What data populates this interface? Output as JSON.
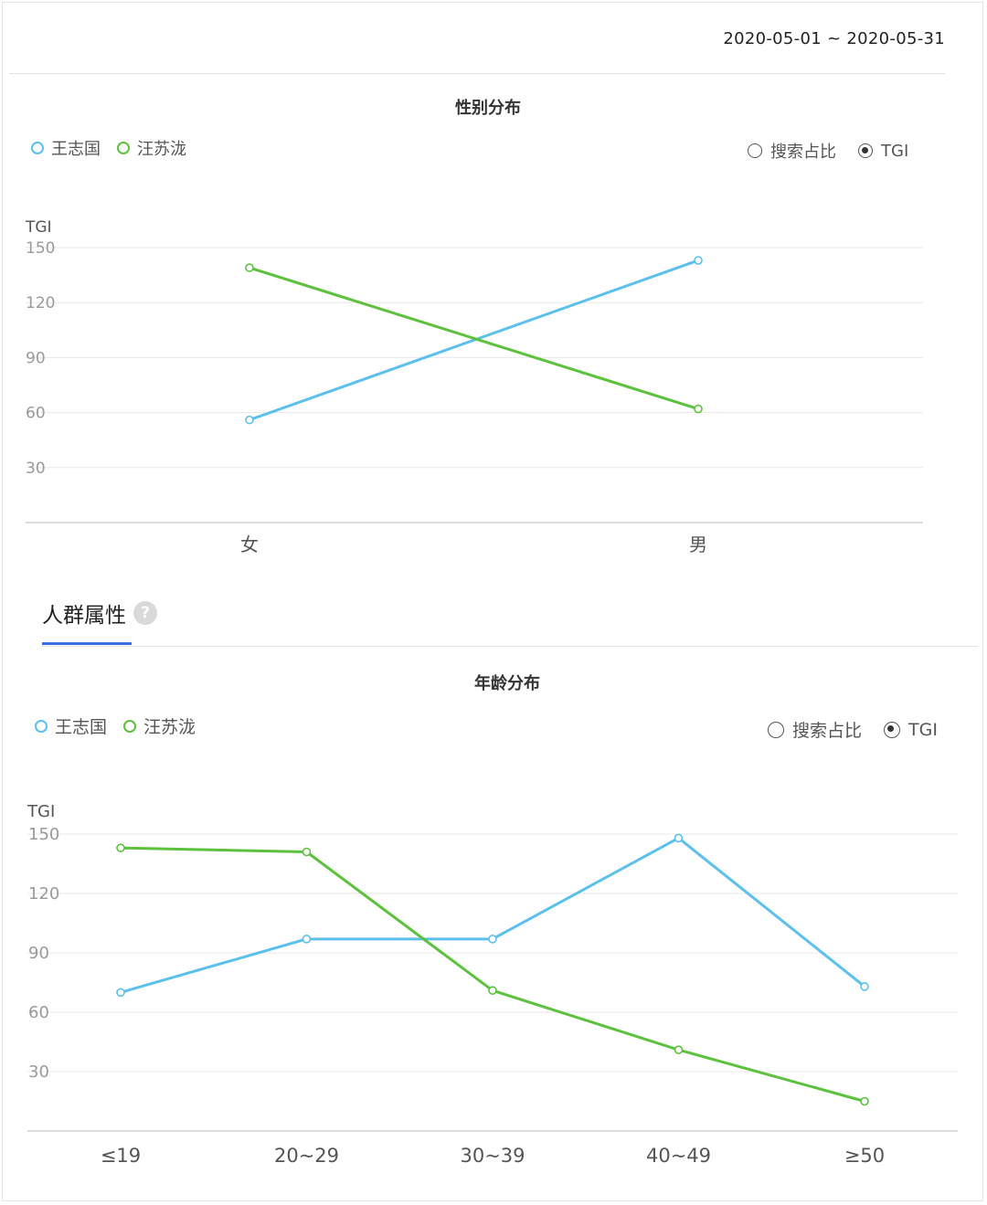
{
  "header": {
    "date_range": "2020-05-01 ~ 2020-05-31"
  },
  "colors": {
    "blue": "#5bc0ec",
    "green": "#5cc13d",
    "grid": "#e8e8e8",
    "axis": "#d0d0d0",
    "tab_accent": "#3b6fe0"
  },
  "section": {
    "tab_label": "人群属性",
    "help_icon": "?"
  },
  "gender": {
    "legend": [
      "王志国",
      "汪苏泷"
    ],
    "radio_share": "搜索占比",
    "radio_tgi": "TGI"
  },
  "age": {
    "legend": [
      "王志国",
      "汪苏泷"
    ],
    "radio_share": "搜索占比",
    "radio_tgi": "TGI"
  },
  "chart_data": [
    {
      "type": "line",
      "title": "性别分布",
      "ylabel": "TGI",
      "ylim": [
        0,
        150
      ],
      "yticks": [
        30,
        60,
        90,
        120,
        150
      ],
      "categories": [
        "女",
        "男"
      ],
      "series": [
        {
          "name": "王志国",
          "color": "#5bc0ec",
          "values": [
            56,
            143
          ]
        },
        {
          "name": "汪苏泷",
          "color": "#5cc13d",
          "values": [
            139,
            62
          ]
        }
      ],
      "legend": "top-left",
      "grid": true
    },
    {
      "type": "line",
      "title": "年龄分布",
      "ylabel": "TGI",
      "ylim": [
        0,
        150
      ],
      "yticks": [
        30,
        60,
        90,
        120,
        150
      ],
      "categories": [
        "≤19",
        "20~29",
        "30~39",
        "40~49",
        "≥50"
      ],
      "series": [
        {
          "name": "王志国",
          "color": "#5bc0ec",
          "values": [
            70,
            97,
            97,
            148,
            73
          ]
        },
        {
          "name": "汪苏泷",
          "color": "#5cc13d",
          "values": [
            143,
            141,
            71,
            41,
            15
          ]
        }
      ],
      "legend": "top-left",
      "grid": true
    }
  ]
}
